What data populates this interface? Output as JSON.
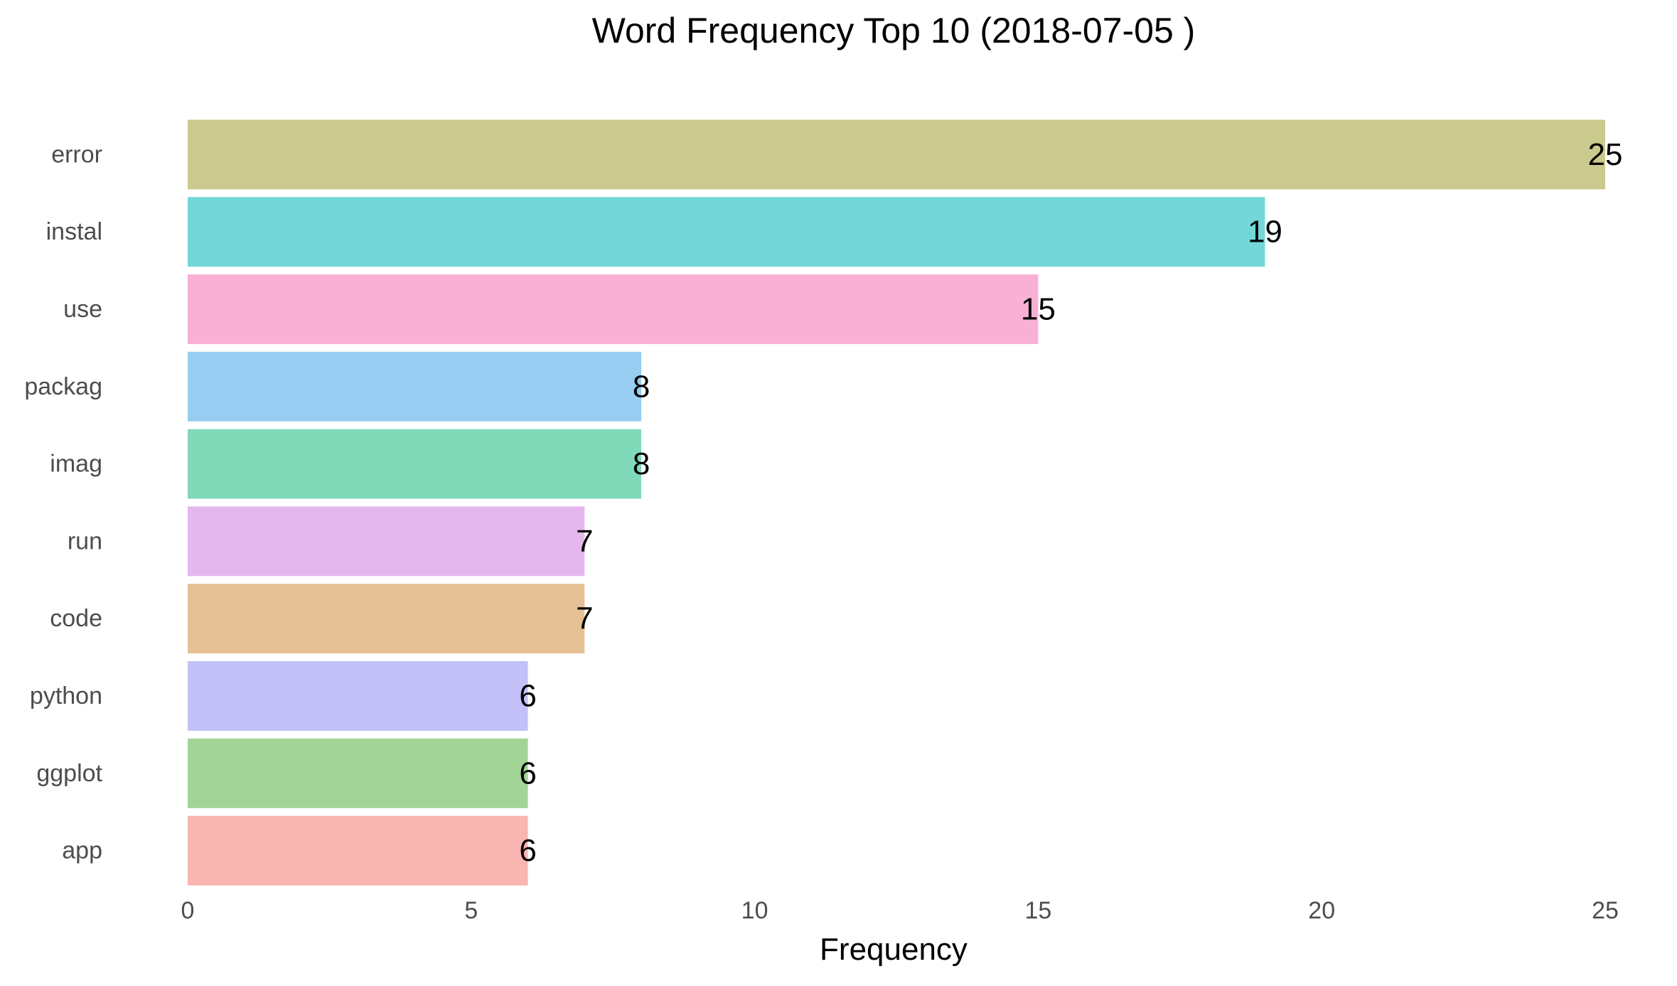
{
  "chart_data": {
    "type": "bar",
    "orientation": "horizontal",
    "title": "Word Frequency Top 10 (2018-07-05 )",
    "xlabel": "Frequency",
    "ylabel": "",
    "categories": [
      "error",
      "instal",
      "use",
      "packag",
      "imag",
      "run",
      "code",
      "python",
      "ggplot",
      "app"
    ],
    "values": [
      25,
      19,
      15,
      8,
      8,
      7,
      7,
      6,
      6,
      6
    ],
    "colors": [
      "#CBCA8E",
      "#73D7D9",
      "#F9B0D4",
      "#96CDF0",
      "#80D9B9",
      "#E5B7EF",
      "#E6C195",
      "#C3C1F7",
      "#A2D497",
      "#F9B5B1"
    ],
    "xlim": [
      0,
      25
    ],
    "xticks": [
      0,
      5,
      10,
      15,
      20,
      25
    ],
    "grid": false,
    "legend": "none",
    "show_value_labels": true
  }
}
